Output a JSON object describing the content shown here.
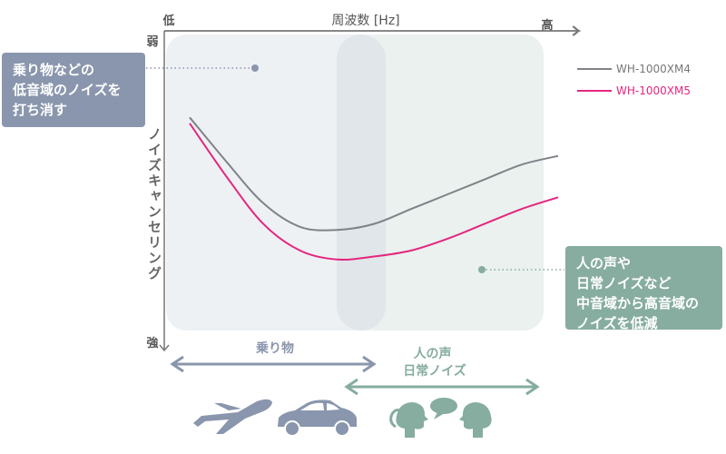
{
  "chart_data": {
    "type": "line",
    "title": "周波数 [Hz]",
    "xlabel": "周波数 [Hz]",
    "ylabel": "ノイズキャンセリング",
    "x_ends": {
      "low": "低",
      "high": "高"
    },
    "y_ends": {
      "weak": "弱",
      "strong": "強"
    },
    "xlim": [
      0,
      100
    ],
    "ylim": [
      0,
      100
    ],
    "legend_position": "top-right",
    "series": [
      {
        "name": "WH-1000XM4",
        "color": "#7f8287",
        "x": [
          0,
          10,
          20,
          30,
          40,
          50,
          60,
          70,
          80,
          90,
          100
        ],
        "y": [
          72,
          57,
          43,
          35,
          34,
          36,
          41,
          46,
          51,
          56,
          59
        ]
      },
      {
        "name": "WH-1000XM5",
        "color": "#e4267e",
        "x": [
          0,
          10,
          20,
          30,
          40,
          50,
          60,
          70,
          80,
          90,
          100
        ],
        "y": [
          70,
          52,
          36,
          27,
          24,
          25,
          27,
          31,
          36,
          41,
          45
        ]
      }
    ]
  },
  "bands": {
    "vehicles": {
      "label": "乗り物",
      "color": "#8a96ad",
      "range": [
        0,
        55
      ]
    },
    "voices": {
      "label": "人の声\n日常ノイズ",
      "color": "#86ad9f",
      "range": [
        48,
        100
      ]
    }
  },
  "callouts": {
    "low": "乗り物などの\n低音域のノイズを\n打ち消す",
    "high": "人の声や\n日常ノイズなど\n中音域から高音域の\nノイズを低減"
  },
  "icons": [
    "airplane-icon",
    "car-icon",
    "talking-people-icon"
  ],
  "colors": {
    "band_bg": "#eef1f4",
    "mid_band": "#e0e6e9",
    "axis": "#666666"
  }
}
